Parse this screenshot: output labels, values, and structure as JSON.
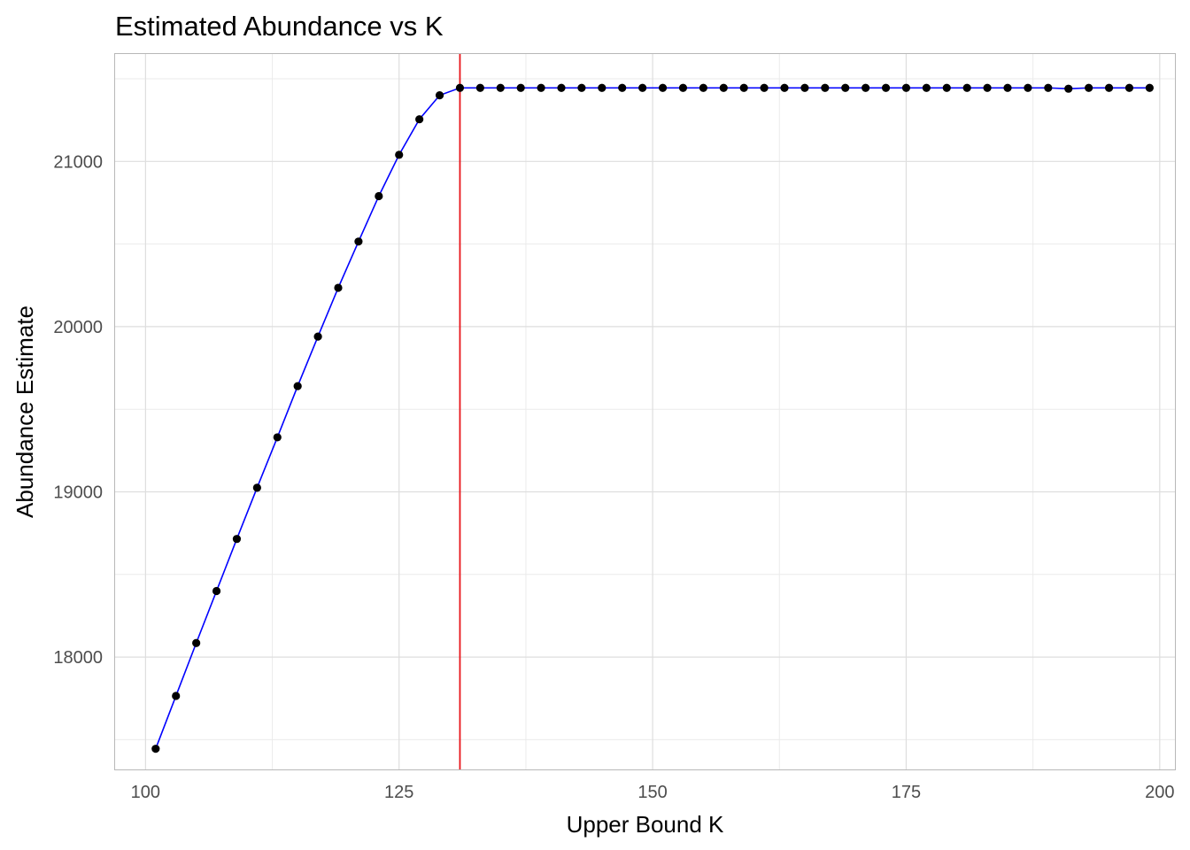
{
  "chart_data": {
    "type": "line",
    "title": "Estimated Abundance vs K",
    "xlabel": "Upper Bound K",
    "ylabel": "Abundance Estimate",
    "xlim": [
      97,
      201.5
    ],
    "ylim": [
      17320,
      21650
    ],
    "x_ticks": [
      100,
      125,
      150,
      175,
      200
    ],
    "x_tick_labels": [
      "100",
      "125",
      "150",
      "175",
      "200"
    ],
    "y_ticks": [
      18000,
      19000,
      20000,
      21000
    ],
    "y_tick_labels": [
      "18000",
      "19000",
      "20000",
      "21000"
    ],
    "grid": true,
    "legend": "none",
    "vline": {
      "x": 131,
      "color": "#e8141a"
    },
    "series": [
      {
        "line_color": "#0000ff",
        "point_color": "#000000",
        "x": [
          101,
          103,
          105,
          107,
          109,
          111,
          113,
          115,
          117,
          119,
          121,
          123,
          125,
          127,
          129,
          131,
          133,
          135,
          137,
          139,
          141,
          143,
          145,
          147,
          149,
          151,
          153,
          155,
          157,
          159,
          161,
          163,
          165,
          167,
          169,
          171,
          173,
          175,
          177,
          179,
          181,
          183,
          185,
          187,
          189,
          191,
          193,
          195,
          197,
          199
        ],
        "values": [
          17445,
          17765,
          18085,
          18400,
          18715,
          19025,
          19330,
          19640,
          19940,
          20235,
          20515,
          20790,
          21040,
          21255,
          21400,
          21445,
          21445,
          21445,
          21445,
          21445,
          21445,
          21445,
          21445,
          21445,
          21445,
          21445,
          21445,
          21445,
          21445,
          21445,
          21445,
          21445,
          21445,
          21445,
          21445,
          21445,
          21445,
          21445,
          21445,
          21445,
          21445,
          21445,
          21445,
          21445,
          21445,
          21440,
          21445,
          21445,
          21445,
          21445
        ]
      }
    ]
  }
}
